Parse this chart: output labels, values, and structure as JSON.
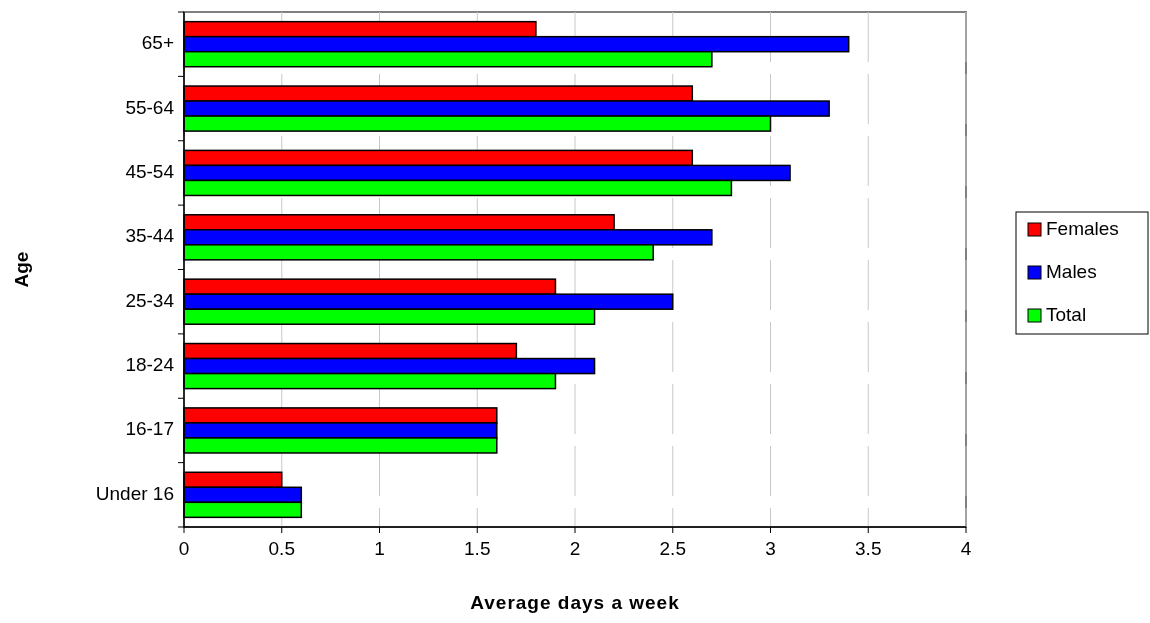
{
  "chart_data": {
    "type": "bar",
    "orientation": "horizontal",
    "xlabel": "Average days a week",
    "ylabel": "Age",
    "categories": [
      "65+",
      "55-64",
      "45-54",
      "35-44",
      "25-34",
      "18-24",
      "16-17",
      "Under 16"
    ],
    "series": [
      {
        "name": "Females",
        "color": "#ff0000",
        "values": [
          1.8,
          2.6,
          2.6,
          2.2,
          1.9,
          1.7,
          1.6,
          0.5
        ]
      },
      {
        "name": "Males",
        "color": "#0000ff",
        "values": [
          3.4,
          3.3,
          3.1,
          2.7,
          2.5,
          2.1,
          1.6,
          0.6
        ]
      },
      {
        "name": "Total",
        "color": "#00ff00",
        "values": [
          2.7,
          3.0,
          2.8,
          2.4,
          2.1,
          1.9,
          1.6,
          0.6
        ]
      }
    ],
    "xlim": [
      0,
      4
    ],
    "xticks": [
      0,
      0.5,
      1,
      1.5,
      2,
      2.5,
      3,
      3.5,
      4
    ],
    "grid": "x",
    "legend": "right"
  }
}
